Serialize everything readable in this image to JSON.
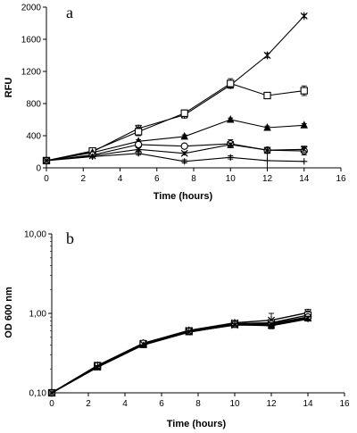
{
  "chart_data": [
    {
      "panel": "a",
      "type": "line",
      "xlabel": "Time (hours)",
      "ylabel": "RFU",
      "xlim": [
        0,
        16
      ],
      "ylim": [
        0,
        2000
      ],
      "xticks": [
        "0",
        "2",
        "4",
        "6",
        "8",
        "10",
        "12",
        "14",
        "16"
      ],
      "yticks": [
        "0",
        "400",
        "800",
        "1200",
        "1600",
        "2000"
      ],
      "x": [
        0,
        2.5,
        5,
        7.5,
        10,
        12,
        14
      ],
      "series": [
        {
          "marker": "asterisk",
          "values": [
            90,
            200,
            490,
            660,
            1030,
            1400,
            1890
          ],
          "err": [
            0,
            0,
            40,
            40,
            30,
            30,
            20
          ]
        },
        {
          "marker": "square",
          "values": [
            90,
            210,
            450,
            680,
            1050,
            900,
            960
          ],
          "err": [
            0,
            0,
            50,
            40,
            60,
            30,
            60
          ]
        },
        {
          "marker": "triangle",
          "values": [
            90,
            190,
            330,
            390,
            600,
            500,
            530
          ],
          "err": [
            0,
            0,
            20,
            20,
            20,
            20,
            20
          ]
        },
        {
          "marker": "circle",
          "values": [
            90,
            160,
            290,
            270,
            300,
            220,
            210
          ],
          "err": [
            0,
            0,
            30,
            20,
            50,
            30,
            50
          ]
        },
        {
          "marker": "x",
          "values": [
            90,
            150,
            230,
            180,
            290,
            220,
            230
          ],
          "err": [
            0,
            0,
            20,
            20,
            20,
            30,
            40
          ]
        },
        {
          "marker": "plus",
          "values": [
            90,
            140,
            180,
            80,
            130,
            90,
            80
          ],
          "err": [
            0,
            0,
            20,
            20,
            20,
            90,
            0
          ]
        }
      ]
    },
    {
      "panel": "b",
      "type": "line",
      "xlabel": "Time (hours)",
      "ylabel": "OD 600 nm",
      "xlim": [
        0,
        16
      ],
      "ylim": [
        0.1,
        10
      ],
      "yscale": "log",
      "xticks": [
        "0",
        "2",
        "4",
        "6",
        "8",
        "10",
        "12",
        "14",
        "16"
      ],
      "yticks": [
        "0,10",
        "1,00",
        "10,00"
      ],
      "x": [
        0,
        2.5,
        5,
        7.5,
        10,
        12,
        14
      ],
      "series": [
        {
          "marker": "asterisk",
          "values": [
            0.1,
            0.22,
            0.42,
            0.61,
            0.76,
            0.82,
            1.02
          ],
          "err": [
            0,
            0,
            0,
            0,
            0,
            0.18,
            0.1
          ]
        },
        {
          "marker": "square",
          "values": [
            0.1,
            0.22,
            0.41,
            0.6,
            0.74,
            0.76,
            0.95
          ],
          "err": [
            0,
            0,
            0,
            0,
            0,
            0.05,
            0.05
          ]
        },
        {
          "marker": "triangle",
          "values": [
            0.1,
            0.21,
            0.4,
            0.58,
            0.72,
            0.7,
            0.88
          ],
          "err": [
            0,
            0,
            0,
            0,
            0,
            0.05,
            0.05
          ]
        },
        {
          "marker": "circle",
          "values": [
            0.1,
            0.22,
            0.42,
            0.6,
            0.73,
            0.74,
            0.9
          ],
          "err": [
            0,
            0,
            0,
            0,
            0,
            0.05,
            0.05
          ]
        },
        {
          "marker": "x",
          "values": [
            0.1,
            0.21,
            0.41,
            0.59,
            0.71,
            0.72,
            0.87
          ],
          "err": [
            0,
            0,
            0,
            0,
            0,
            0.05,
            0.05
          ]
        },
        {
          "marker": "plus",
          "values": [
            0.1,
            0.22,
            0.4,
            0.6,
            0.75,
            0.7,
            0.85
          ],
          "err": [
            0,
            0,
            0,
            0,
            0,
            0.05,
            0.05
          ]
        }
      ]
    }
  ]
}
